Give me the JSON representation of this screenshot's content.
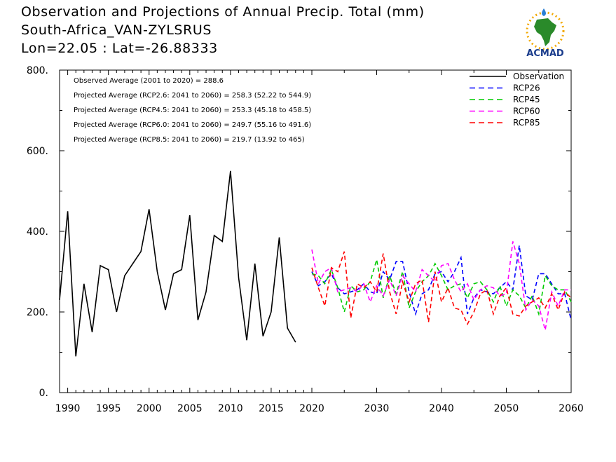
{
  "header": {
    "line1": "Observation and Projections of Annual Precip. Total (mm)",
    "line2": "South-Africa_VAN-ZYLSRUS",
    "line3": "Lon=22.05 : Lat=-26.88333"
  },
  "logo": {
    "text": "ACMAD",
    "icon": "africa-map-logo-icon",
    "color": "#1a3c8c"
  },
  "chart_data": {
    "type": "line",
    "title": "Observation and Projections of Annual Precip. Total (mm)",
    "xlim": [
      1989,
      2060
    ],
    "ylim": [
      0,
      800
    ],
    "x_ticks": [
      1990,
      1995,
      2000,
      2005,
      2010,
      2015,
      2020,
      2030,
      2040,
      2050,
      2060
    ],
    "y_ticks": [
      0,
      200,
      400,
      600,
      800
    ],
    "y_tick_labels": [
      "0.",
      "200.",
      "400.",
      "600.",
      "800."
    ],
    "grid": false,
    "legend_position": "top-right",
    "stats": [
      "Observed Average (2001 to 2020) = 288.6",
      "Projected Average (RCP2.6: 2041 to 2060) = 258.3 (52.22 to 544.9)",
      "Projected Average (RCP4.5: 2041 to 2060) = 253.3 (45.18 to 458.5)",
      "Projected Average (RCP6.0: 2041 to 2060) = 249.7 (55.16 to 491.6)",
      "Projected Average (RCP8.5: 2041 to 2060) = 219.7 (13.92 to 465)"
    ],
    "series": [
      {
        "name": "Observation",
        "color": "#000000",
        "dash": false,
        "x": [
          1989,
          1990,
          1991,
          1992,
          1993,
          1994,
          1995,
          1996,
          1997,
          1998,
          1999,
          2000,
          2001,
          2002,
          2003,
          2004,
          2005,
          2006,
          2007,
          2008,
          2009,
          2010,
          2011,
          2012,
          2013,
          2014,
          2015,
          2016,
          2017,
          2018,
          2019
        ],
        "y": [
          230,
          450,
          90,
          270,
          150,
          315,
          305,
          200,
          290,
          320,
          350,
          455,
          300,
          205,
          295,
          305,
          440,
          180,
          250,
          390,
          375,
          550,
          285,
          130,
          320,
          140,
          200,
          385,
          160,
          125,
          null
        ]
      },
      {
        "name": "RCP26",
        "color": "#0000ff",
        "dash": true,
        "x": [
          2020,
          2021,
          2022,
          2023,
          2024,
          2025,
          2026,
          2027,
          2028,
          2029,
          2030,
          2031,
          2032,
          2033,
          2034,
          2035,
          2036,
          2037,
          2038,
          2039,
          2040,
          2041,
          2042,
          2043,
          2044,
          2045,
          2046,
          2047,
          2048,
          2049,
          2050,
          2051,
          2052,
          2053,
          2054,
          2055,
          2056,
          2057,
          2058,
          2059,
          2060
        ],
        "y": [
          300,
          265,
          275,
          295,
          260,
          245,
          250,
          255,
          270,
          250,
          245,
          300,
          280,
          325,
          325,
          250,
          195,
          245,
          255,
          295,
          300,
          275,
          300,
          335,
          195,
          235,
          255,
          250,
          245,
          260,
          275,
          255,
          365,
          240,
          230,
          295,
          295,
          270,
          245,
          245,
          180
        ]
      },
      {
        "name": "RCP45",
        "color": "#00cc00",
        "dash": true,
        "x": [
          2020,
          2021,
          2022,
          2023,
          2024,
          2025,
          2026,
          2027,
          2028,
          2029,
          2030,
          2031,
          2032,
          2033,
          2034,
          2035,
          2036,
          2037,
          2038,
          2039,
          2040,
          2041,
          2042,
          2043,
          2044,
          2045,
          2046,
          2047,
          2048,
          2049,
          2050,
          2051,
          2052,
          2053,
          2054,
          2055,
          2056,
          2057,
          2058,
          2059,
          2060
        ],
        "y": [
          295,
          290,
          270,
          305,
          260,
          200,
          265,
          250,
          255,
          275,
          330,
          235,
          290,
          245,
          300,
          210,
          250,
          275,
          290,
          320,
          290,
          255,
          265,
          270,
          235,
          270,
          275,
          255,
          225,
          265,
          215,
          255,
          240,
          210,
          240,
          195,
          290,
          265,
          255,
          255,
          225
        ]
      },
      {
        "name": "RCP60",
        "color": "#ff00ff",
        "dash": true,
        "x": [
          2020,
          2021,
          2022,
          2023,
          2024,
          2025,
          2026,
          2027,
          2028,
          2029,
          2030,
          2031,
          2032,
          2033,
          2034,
          2035,
          2036,
          2037,
          2038,
          2039,
          2040,
          2041,
          2042,
          2043,
          2044,
          2045,
          2046,
          2047,
          2048,
          2049,
          2050,
          2051,
          2052,
          2053,
          2054,
          2055,
          2056,
          2057,
          2058,
          2059,
          2060
        ],
        "y": [
          355,
          270,
          300,
          310,
          250,
          255,
          260,
          250,
          270,
          225,
          265,
          240,
          280,
          240,
          290,
          270,
          250,
          305,
          290,
          275,
          315,
          320,
          280,
          250,
          270,
          230,
          255,
          265,
          260,
          240,
          245,
          375,
          320,
          205,
          230,
          215,
          155,
          250,
          215,
          255,
          255
        ]
      },
      {
        "name": "RCP85",
        "color": "#ff0000",
        "dash": true,
        "x": [
          2020,
          2021,
          2022,
          2023,
          2024,
          2025,
          2026,
          2027,
          2028,
          2029,
          2030,
          2031,
          2032,
          2033,
          2034,
          2035,
          2036,
          2037,
          2038,
          2039,
          2040,
          2041,
          2042,
          2043,
          2044,
          2045,
          2046,
          2047,
          2048,
          2049,
          2050,
          2051,
          2052,
          2053,
          2054,
          2055,
          2056,
          2057,
          2058,
          2059,
          2060
        ],
        "y": [
          310,
          260,
          215,
          310,
          300,
          350,
          185,
          270,
          260,
          275,
          250,
          345,
          250,
          195,
          275,
          225,
          270,
          280,
          175,
          300,
          225,
          260,
          210,
          205,
          170,
          200,
          245,
          255,
          195,
          240,
          260,
          195,
          190,
          215,
          225,
          235,
          210,
          245,
          205,
          250,
          235
        ]
      }
    ]
  }
}
